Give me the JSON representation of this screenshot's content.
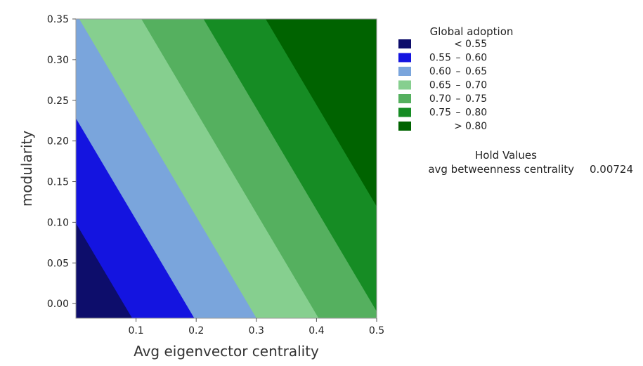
{
  "chart_data": {
    "type": "contour",
    "xlabel": "Avg eigenvector centrality",
    "ylabel": "modularity",
    "xlim": [
      0.0,
      0.5
    ],
    "ylim": [
      -0.018,
      0.35
    ],
    "xticks": [
      0.1,
      0.2,
      0.3,
      0.4,
      0.5
    ],
    "xtick_labels": [
      "0.1",
      "0.2",
      "0.3",
      "0.4",
      "0.5"
    ],
    "yticks": [
      0.0,
      0.05,
      0.1,
      0.15,
      0.2,
      0.25,
      0.3,
      0.35
    ],
    "ytick_labels": [
      "0.00",
      "0.05",
      "0.10",
      "0.15",
      "0.20",
      "0.25",
      "0.30",
      "0.35"
    ],
    "model": {
      "intercept": 0.5115,
      "x_coef": 0.484,
      "y_coef": 0.3875
    },
    "legend": {
      "title": "Global adoption",
      "position": "right",
      "entries": [
        {
          "low": "",
          "op": "<",
          "high": "0.55",
          "color": "#0d0d6b"
        },
        {
          "low": "0.55",
          "op": "–",
          "high": "0.60",
          "color": "#1414e0"
        },
        {
          "low": "0.60",
          "op": "–",
          "high": "0.65",
          "color": "#7aa5dc"
        },
        {
          "low": "0.65",
          "op": "–",
          "high": "0.70",
          "color": "#86cf8f"
        },
        {
          "low": "0.70",
          "op": "–",
          "high": "0.75",
          "color": "#55b05f"
        },
        {
          "low": "0.75",
          "op": "–",
          "high": "0.80",
          "color": "#168c24"
        },
        {
          "low": "",
          "op": ">",
          "high": "0.80",
          "color": "#006300"
        }
      ],
      "thresholds": [
        0.55,
        0.6,
        0.65,
        0.7,
        0.75,
        0.8
      ]
    },
    "hold_values": {
      "title": "Hold Values",
      "label": "avg betweenness centrality",
      "value": "0.00724"
    }
  }
}
